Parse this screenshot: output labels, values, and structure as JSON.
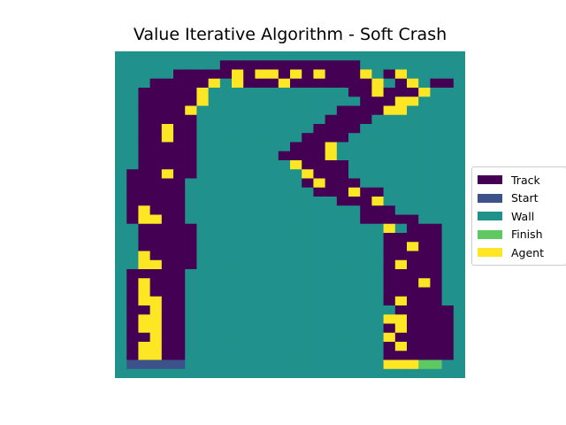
{
  "chart_data": {
    "type": "heatmap",
    "title": "Value Iterative Algorithm - Soft Crash",
    "legend": {
      "placement": "right",
      "entries": [
        {
          "key": "T",
          "label": "Track",
          "color": "#440154"
        },
        {
          "key": "S",
          "label": "Start",
          "color": "#3b528b"
        },
        {
          "key": "W",
          "label": "Wall",
          "color": "#21918c"
        },
        {
          "key": "F",
          "label": "Finish",
          "color": "#5ec962"
        },
        {
          "key": "A",
          "label": "Agent",
          "color": "#fde725"
        }
      ]
    },
    "rows": [
      "WWWWWWWWWWWWWWWWWWWWWWWWWWWWWW",
      "WWWWWWWWWTTTTTTTTTTTTWWWWWWWWW",
      "WWWWWTTTTTATAATATATTTAWTAWWWWW",
      "WWWTTTTTAWATTTATTTTTTTAWTAWTTW",
      "WWTTTTTAWWWWWWWWWWWWTTATTTAWWW",
      "WWTTTTTAWWWWWWWWWWWWWTTTAAWWWW",
      "WWTTTTAWWWWWWWWWWWWTTTTAAWWWWW",
      "WWTTTTTWWWWWWWWWWWTTTTWWWWWWWW",
      "WWTTATTWWWWWWWWWWTTTTWWWWWWWWW",
      "WWTTATTWWWWWWWWWTTTTWWWWWWWWWW",
      "WWTTTTTWWWWWWWWTTTAWWWWWWWWWWW",
      "WWTTTTTWWWWWWWTTTTAWWWWWWWWWWW",
      "WWTTTTTWWWWWWWWATTTTWWWWWWWWWW",
      "WTTTATTWWWWWWWWWATTTWWWWWWWWWW",
      "WTTTTTWWWWWWWWWWTATTTWWWWWWWWW",
      "WTTTTTWWWWWWWWWWWTTTATTWWWWWWW",
      "WTTTTTWWWWWWWWWWWWWTTTAWWWWWWW",
      "WTATTTWWWWWWWWWWWWWWWTTTWWWWWW",
      "WTAATTWWWWWWWWWWWWWWWTTTTTWWWW",
      "WWTTTTTWWWWWWWWWWWWWWWWAWTTTWW",
      "WWTTTTTWWWWWWWWWWWWWWWWTTTTTWW",
      "WWTTTTTWWWWWWWWWWWWWWWWTTATTWW",
      "WWATTTTWWWWWWWWWWWWWWWWTTTTTWW",
      "WWAATTTWWWWWWWWWWWWWWWWTATTTWW",
      "WTTTTTWWWWWWWWWWWWWWWWWTTTTTWW",
      "WTATTTWWWWWWWWWWWWWWWWWTTTATWW",
      "WTATTTWWWWWWWWWWWWWWWWWTTTTTWW",
      "WTAATTWWWWWWWWWWWWWWWWWTATTTWW",
      "WTTATTWWWWWWWWWWWWWWWWWWTTTTTW",
      "WTAATTWWWWWWWWWWWWWWWWWAATTTTW",
      "WTAATTWWWWWWWWWWWWWWWWWTATTTTW",
      "WTTATTWWWWWWWWWWWWWWWWWATTTTTW",
      "WTAATTWWWWWWWWWWWWWWWWWTATTTTW",
      "WTAATTWWWWWWWWWWWWWWWWWTTTTTTW",
      "WSSSSSWWWWWWWWWWWWWWWWWAAAFFWW",
      "WWWWWWWWWWWWWWWWWWWWWWWWWWWWWW"
    ],
    "grid": false
  }
}
